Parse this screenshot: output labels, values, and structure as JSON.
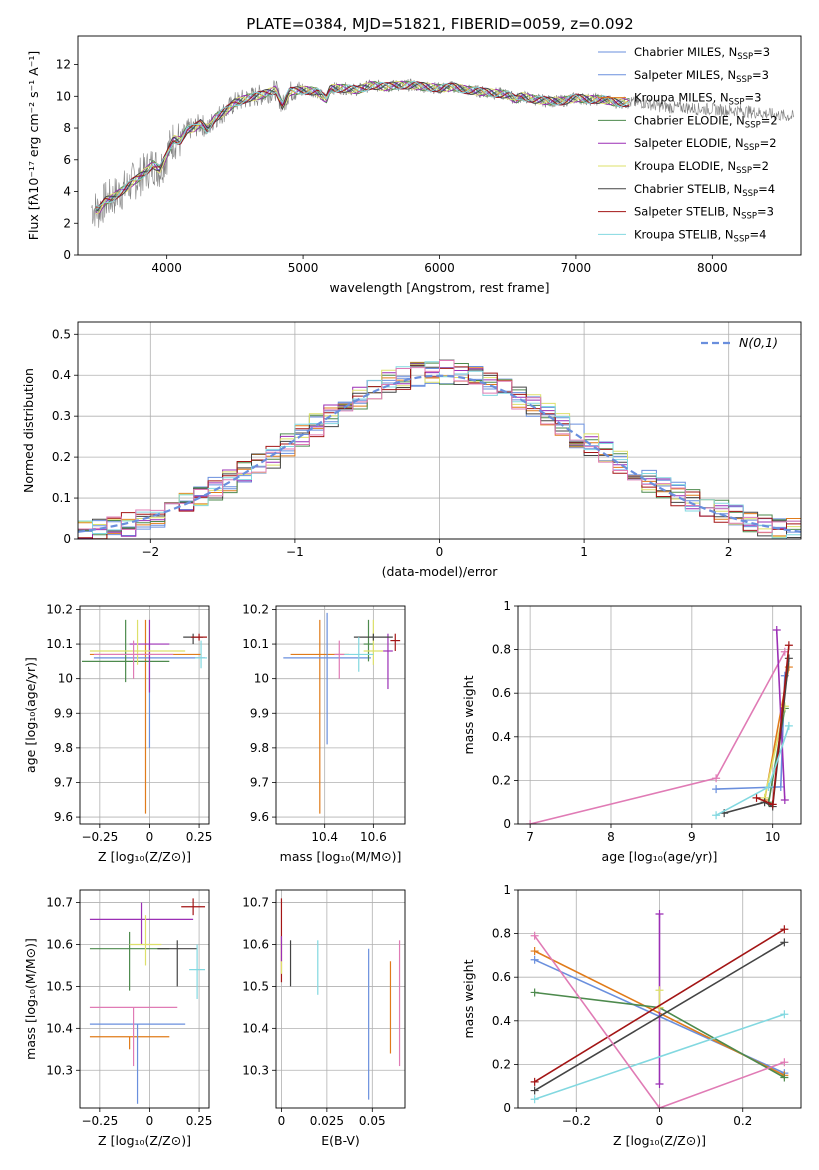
{
  "figure": {
    "title": "PLATE=0384, MJD=51821, FIBERID=0059, z=0.092"
  },
  "chart_data": [
    {
      "id": "spectrum",
      "type": "line",
      "xlabel": "wavelength [Angstrom, rest frame]",
      "ylabel": "Flux [fλ10⁻¹⁷ erg cm⁻² s⁻¹ A⁻¹]",
      "xlim": [
        3350,
        8650
      ],
      "ylim": [
        0,
        13.8
      ],
      "xticks": [
        4000,
        5000,
        6000,
        7000,
        8000
      ],
      "yticks": [
        0,
        2,
        4,
        6,
        8,
        10,
        12
      ],
      "grid": false,
      "legend_position": "right",
      "data_curve": {
        "color": "#808080",
        "points": [
          [
            3450,
            3.0
          ],
          [
            3500,
            2.8
          ],
          [
            3550,
            3.4
          ],
          [
            3600,
            3.6
          ],
          [
            3650,
            3.9
          ],
          [
            3700,
            4.2
          ],
          [
            3750,
            4.6
          ],
          [
            3800,
            4.9
          ],
          [
            3850,
            5.3
          ],
          [
            3900,
            5.7
          ],
          [
            3950,
            5.4
          ],
          [
            4000,
            6.3
          ],
          [
            4050,
            7.3
          ],
          [
            4100,
            7.2
          ],
          [
            4150,
            7.9
          ],
          [
            4200,
            8.0
          ],
          [
            4250,
            8.3
          ],
          [
            4300,
            7.9
          ],
          [
            4350,
            8.6
          ],
          [
            4400,
            8.9
          ],
          [
            4450,
            9.2
          ],
          [
            4500,
            9.6
          ],
          [
            4600,
            9.9
          ],
          [
            4700,
            10.1
          ],
          [
            4800,
            10.4
          ],
          [
            4850,
            9.4
          ],
          [
            4900,
            10.3
          ],
          [
            5000,
            10.4
          ],
          [
            5100,
            10.3
          ],
          [
            5170,
            9.8
          ],
          [
            5200,
            10.5
          ],
          [
            5300,
            10.5
          ],
          [
            5400,
            10.4
          ],
          [
            5500,
            10.7
          ],
          [
            5600,
            10.6
          ],
          [
            5700,
            10.7
          ],
          [
            5800,
            10.7
          ],
          [
            5900,
            10.6
          ],
          [
            6000,
            10.5
          ],
          [
            6100,
            10.6
          ],
          [
            6200,
            10.4
          ],
          [
            6300,
            10.3
          ],
          [
            6400,
            10.2
          ],
          [
            6500,
            10.1
          ],
          [
            6560,
            9.8
          ],
          [
            6600,
            10.0
          ],
          [
            6700,
            9.8
          ],
          [
            6800,
            9.7
          ],
          [
            6900,
            9.7
          ],
          [
            7000,
            9.9
          ],
          [
            7100,
            9.8
          ],
          [
            7200,
            9.8
          ],
          [
            7300,
            9.6
          ],
          [
            7400,
            9.6
          ],
          [
            7500,
            9.6
          ],
          [
            7600,
            9.4
          ],
          [
            7700,
            9.3
          ],
          [
            7800,
            9.3
          ],
          [
            7900,
            9.2
          ],
          [
            8000,
            9.2
          ],
          [
            8100,
            9.1
          ],
          [
            8200,
            9.1
          ],
          [
            8300,
            9.0
          ],
          [
            8400,
            8.9
          ],
          [
            8500,
            8.8
          ],
          [
            8600,
            8.7
          ]
        ]
      },
      "series": [
        {
          "name": "Chabrier MILES, N",
          "sub": "SSP",
          "suffix": "=3",
          "color": "#6a8fdd"
        },
        {
          "name": "Salpeter MILES, N",
          "sub": "SSP",
          "suffix": "=3",
          "color": "#6a8fdd"
        },
        {
          "name": "Kroupa MILES, N",
          "sub": "SSP",
          "suffix": "=3",
          "color": "#e07b1a"
        },
        {
          "name": "Chabrier ELODIE, N",
          "sub": "SSP",
          "suffix": "=2",
          "color": "#4d8a4d"
        },
        {
          "name": "Salpeter ELODIE, N",
          "sub": "SSP",
          "suffix": "=2",
          "color": "#9b2fb5"
        },
        {
          "name": "Kroupa ELODIE, N",
          "sub": "SSP",
          "suffix": "=2",
          "color": "#dde06a"
        },
        {
          "name": "Chabrier STELIB, N",
          "sub": "SSP",
          "suffix": "=4",
          "color": "#444444"
        },
        {
          "name": "Salpeter STELIB, N",
          "sub": "SSP",
          "suffix": "=3",
          "color": "#a31515"
        },
        {
          "name": "Kroupa STELIB, N",
          "sub": "SSP",
          "suffix": "=4",
          "color": "#82d8e0"
        }
      ]
    },
    {
      "id": "residual-histogram",
      "type": "histogram",
      "xlabel": "(data-model)/error",
      "ylabel": "Normed distribution",
      "xlim": [
        -2.5,
        2.5
      ],
      "ylim": [
        0,
        0.53
      ],
      "xticks": [
        -2,
        -1,
        0,
        1,
        2
      ],
      "yticks": [
        0.0,
        0.1,
        0.2,
        0.3,
        0.4,
        0.5
      ],
      "grid": true,
      "legend_position": "top-right",
      "bin_width": 0.1,
      "reference_curve": {
        "label": "N(0,1)",
        "color": "#6a8fdd",
        "dashed": true
      },
      "envelope": {
        "x": [
          -2.5,
          -2.2,
          -2.0,
          -1.8,
          -1.5,
          -1.2,
          -1.0,
          -0.8,
          -0.6,
          -0.4,
          -0.2,
          0.0,
          0.2,
          0.4,
          0.6,
          0.8,
          1.0,
          1.2,
          1.5,
          1.8,
          2.0,
          2.2,
          2.5
        ],
        "y": [
          0.02,
          0.03,
          0.05,
          0.08,
          0.13,
          0.19,
          0.24,
          0.29,
          0.33,
          0.38,
          0.4,
          0.41,
          0.4,
          0.37,
          0.34,
          0.29,
          0.24,
          0.2,
          0.13,
          0.09,
          0.06,
          0.04,
          0.02
        ]
      },
      "series_colors": [
        "#6a8fdd",
        "#6a8fdd",
        "#e07b1a",
        "#4d8a4d",
        "#9b2fb5",
        "#dde06a",
        "#444444",
        "#a31515",
        "#82d8e0",
        "#e07bb5"
      ]
    },
    {
      "id": "age-vs-Z",
      "type": "scatter",
      "xlabel": "Z [log₁₀(Z/Z⊙)]",
      "ylabel": "age  [log₁₀(age/yr)]",
      "xlim": [
        -0.35,
        0.3
      ],
      "ylim": [
        9.58,
        10.21
      ],
      "xticks": [
        -0.25,
        0.0,
        0.25
      ],
      "yticks": [
        9.6,
        9.7,
        9.8,
        9.9,
        10.0,
        10.1,
        10.2
      ],
      "grid": true,
      "points": [
        {
          "x": -0.02,
          "y": 10.07,
          "xerr": 0.28,
          "yerr_lo": 0.46,
          "yerr_hi": 0.1,
          "color": "#e07b1a"
        },
        {
          "x": 0.0,
          "y": 10.06,
          "xerr": 0.28,
          "yerr_lo": 0.26,
          "yerr_hi": 0.04,
          "color": "#6a8fdd"
        },
        {
          "x": -0.12,
          "y": 10.05,
          "xerr": 0.22,
          "yerr_lo": 0.06,
          "yerr_hi": 0.12,
          "color": "#4d8a4d"
        },
        {
          "x": 0.0,
          "y": 10.1,
          "xerr": 0.1,
          "yerr_lo": 0.14,
          "yerr_hi": 0.07,
          "color": "#9b2fb5"
        },
        {
          "x": -0.06,
          "y": 10.08,
          "xerr": 0.24,
          "yerr_lo": 0.04,
          "yerr_hi": 0.09,
          "color": "#dde06a"
        },
        {
          "x": 0.22,
          "y": 10.12,
          "xerr": 0.05,
          "yerr_lo": 0.02,
          "yerr_hi": 0.01,
          "color": "#444444"
        },
        {
          "x": 0.25,
          "y": 10.12,
          "xerr": 0.04,
          "yerr_lo": 0.01,
          "yerr_hi": 0.01,
          "color": "#a31515"
        },
        {
          "x": 0.26,
          "y": 10.06,
          "xerr": 0.03,
          "yerr_lo": 0.03,
          "yerr_hi": 0.05,
          "color": "#82d8e0"
        },
        {
          "x": -0.08,
          "y": 10.07,
          "xerr": 0.2,
          "yerr_lo": 0.07,
          "yerr_hi": 0.04,
          "color": "#e07bb5"
        }
      ]
    },
    {
      "id": "age-vs-mass",
      "type": "scatter",
      "xlabel": "mass [log₁₀(M/M⊙)]",
      "ylabel": "",
      "xlim": [
        10.2,
        10.73
      ],
      "ylim": [
        9.58,
        10.21
      ],
      "xticks": [
        10.4,
        10.6
      ],
      "yticks": [
        9.6,
        9.7,
        9.8,
        9.9,
        10.0,
        10.1,
        10.2
      ],
      "grid": true,
      "points": [
        {
          "x": 10.38,
          "y": 10.07,
          "xerr": 0.12,
          "yerr_lo": 0.46,
          "yerr_hi": 0.1,
          "color": "#e07b1a"
        },
        {
          "x": 10.41,
          "y": 10.06,
          "xerr": 0.18,
          "yerr_lo": 0.25,
          "yerr_hi": 0.13,
          "color": "#6a8fdd"
        },
        {
          "x": 10.58,
          "y": 10.1,
          "xerr": 0.02,
          "yerr_lo": 0.05,
          "yerr_hi": 0.07,
          "color": "#4d8a4d"
        },
        {
          "x": 10.66,
          "y": 10.08,
          "xerr": 0.02,
          "yerr_lo": 0.11,
          "yerr_hi": 0.05,
          "color": "#9b2fb5"
        },
        {
          "x": 10.6,
          "y": 10.08,
          "xerr": 0.04,
          "yerr_lo": 0.04,
          "yerr_hi": 0.09,
          "color": "#dde06a"
        },
        {
          "x": 10.6,
          "y": 10.12,
          "xerr": 0.08,
          "yerr_lo": 0.01,
          "yerr_hi": 0.01,
          "color": "#444444"
        },
        {
          "x": 10.69,
          "y": 10.11,
          "xerr": 0.02,
          "yerr_lo": 0.03,
          "yerr_hi": 0.02,
          "color": "#a31515"
        },
        {
          "x": 10.54,
          "y": 10.07,
          "xerr": 0.06,
          "yerr_lo": 0.05,
          "yerr_hi": 0.05,
          "color": "#82d8e0"
        },
        {
          "x": 10.46,
          "y": 10.07,
          "xerr": 0.02,
          "yerr_lo": 0.07,
          "yerr_hi": 0.04,
          "color": "#e07bb5"
        }
      ]
    },
    {
      "id": "weight-vs-age",
      "type": "line",
      "xlabel": "age  [log₁₀(age/yr)]",
      "ylabel": "mass weight",
      "xlim": [
        6.85,
        10.35
      ],
      "ylim": [
        0,
        1.0
      ],
      "xticks": [
        7,
        8,
        9,
        10
      ],
      "yticks": [
        0.0,
        0.2,
        0.4,
        0.6,
        0.8,
        1.0
      ],
      "grid": true,
      "series": [
        {
          "color": "#e07bb5",
          "x": [
            7.0,
            9.3,
            10.15
          ],
          "y": [
            0.0,
            0.21,
            0.79
          ]
        },
        {
          "color": "#6a8fdd",
          "x": [
            9.3,
            10.1,
            10.15
          ],
          "y": [
            0.16,
            0.17,
            0.68
          ]
        },
        {
          "color": "#e07b1a",
          "x": [
            9.9,
            10.2
          ],
          "y": [
            0.11,
            0.72
          ]
        },
        {
          "color": "#4d8a4d",
          "x": [
            9.95,
            10.15
          ],
          "y": [
            0.1,
            0.53
          ]
        },
        {
          "color": "#9b2fb5",
          "x": [
            10.05,
            10.15
          ],
          "y": [
            0.89,
            0.11
          ]
        },
        {
          "color": "#dde06a",
          "x": [
            9.9,
            10.15
          ],
          "y": [
            0.12,
            0.54
          ]
        },
        {
          "color": "#444444",
          "x": [
            9.4,
            9.9,
            10.0,
            10.2
          ],
          "y": [
            0.05,
            0.1,
            0.08,
            0.76
          ]
        },
        {
          "color": "#a31515",
          "x": [
            9.8,
            10.0,
            10.2
          ],
          "y": [
            0.12,
            0.09,
            0.82
          ]
        },
        {
          "color": "#82d8e0",
          "x": [
            9.3,
            9.95,
            10.2
          ],
          "y": [
            0.04,
            0.17,
            0.45
          ]
        }
      ]
    },
    {
      "id": "mass-vs-Z",
      "type": "scatter",
      "xlabel": "Z [log₁₀(Z/Z⊙)]",
      "ylabel": "mass [log₁₀(M/M⊙)]",
      "xlim": [
        -0.35,
        0.3
      ],
      "ylim": [
        10.21,
        10.73
      ],
      "xticks": [
        -0.25,
        0.0,
        0.25
      ],
      "yticks": [
        10.3,
        10.4,
        10.5,
        10.6,
        10.7
      ],
      "grid": true,
      "points": [
        {
          "x": -0.1,
          "y": 10.38,
          "xerr": 0.2,
          "yerr_lo": 0.03,
          "yerr_hi": 0.0,
          "color": "#e07b1a"
        },
        {
          "x": -0.06,
          "y": 10.41,
          "xerr": 0.24,
          "yerr_lo": 0.19,
          "yerr_hi": 0.0,
          "color": "#6a8fdd"
        },
        {
          "x": -0.1,
          "y": 10.59,
          "xerr": 0.2,
          "yerr_lo": 0.1,
          "yerr_hi": 0.04,
          "color": "#4d8a4d"
        },
        {
          "x": -0.04,
          "y": 10.66,
          "xerr": 0.26,
          "yerr_lo": 0.06,
          "yerr_hi": 0.04,
          "color": "#9b2fb5"
        },
        {
          "x": -0.02,
          "y": 10.6,
          "xerr": 0.08,
          "yerr_lo": 0.05,
          "yerr_hi": 0.07,
          "color": "#dde06a"
        },
        {
          "x": 0.14,
          "y": 10.59,
          "xerr": 0.1,
          "yerr_lo": 0.09,
          "yerr_hi": 0.02,
          "color": "#444444"
        },
        {
          "x": 0.22,
          "y": 10.69,
          "xerr": 0.06,
          "yerr_lo": 0.02,
          "yerr_hi": 0.02,
          "color": "#a31515"
        },
        {
          "x": 0.24,
          "y": 10.54,
          "xerr": 0.04,
          "yerr_lo": 0.07,
          "yerr_hi": 0.06,
          "color": "#82d8e0"
        },
        {
          "x": -0.08,
          "y": 10.45,
          "xerr": 0.22,
          "yerr_lo": 0.14,
          "yerr_hi": 0.0,
          "color": "#e07bb5"
        }
      ]
    },
    {
      "id": "mass-vs-ebv",
      "type": "scatter",
      "xlabel": "E(B-V)",
      "ylabel": "",
      "xlim": [
        -0.003,
        0.068
      ],
      "ylim": [
        10.21,
        10.73
      ],
      "xticks": [
        0.0,
        0.025,
        0.05
      ],
      "yticks": [
        10.3,
        10.4,
        10.5,
        10.6,
        10.7
      ],
      "grid": true,
      "points": [
        {
          "x": 0.0,
          "y": 10.6,
          "yerr_lo": 0.09,
          "yerr_hi": 0.11,
          "color": "#a31515"
        },
        {
          "x": 0.0,
          "y": 10.56,
          "yerr_lo": 0.03,
          "yerr_hi": 0.05,
          "color": "#dde06a"
        },
        {
          "x": 0.0,
          "y": 10.58,
          "yerr_lo": 0.02,
          "yerr_hi": 0.04,
          "color": "#9b2fb5"
        },
        {
          "x": 0.005,
          "y": 10.55,
          "yerr_lo": 0.05,
          "yerr_hi": 0.06,
          "color": "#444444"
        },
        {
          "x": 0.02,
          "y": 10.54,
          "yerr_lo": 0.06,
          "yerr_hi": 0.07,
          "color": "#82d8e0"
        },
        {
          "x": 0.048,
          "y": 10.41,
          "yerr_lo": 0.18,
          "yerr_hi": 0.18,
          "color": "#6a8fdd"
        },
        {
          "x": 0.06,
          "y": 10.45,
          "yerr_lo": 0.11,
          "yerr_hi": 0.11,
          "color": "#e07b1a"
        },
        {
          "x": 0.065,
          "y": 10.46,
          "yerr_lo": 0.15,
          "yerr_hi": 0.15,
          "color": "#e07bb5"
        }
      ]
    },
    {
      "id": "weight-vs-Z",
      "type": "line",
      "xlabel": "Z [log₁₀(Z/Z⊙)]",
      "ylabel": "mass weight",
      "xlim": [
        -0.34,
        0.34
      ],
      "ylim": [
        0,
        1.0
      ],
      "xticks": [
        -0.2,
        0.0,
        0.2
      ],
      "yticks": [
        0.0,
        0.2,
        0.4,
        0.6,
        0.8,
        1.0
      ],
      "grid": true,
      "series": [
        {
          "color": "#6a8fdd",
          "x": [
            -0.3,
            0.3
          ],
          "y": [
            0.68,
            0.16
          ]
        },
        {
          "color": "#e07b1a",
          "x": [
            -0.3,
            0.3
          ],
          "y": [
            0.72,
            0.15
          ]
        },
        {
          "color": "#4d8a4d",
          "x": [
            -0.3,
            0.0,
            0.3
          ],
          "y": [
            0.53,
            0.46,
            0.14
          ]
        },
        {
          "color": "#9b2fb5",
          "x": [
            0.0,
            0.0
          ],
          "y": [
            0.89,
            0.11
          ]
        },
        {
          "color": "#dde06a",
          "x": [
            0.0,
            0.0
          ],
          "y": [
            0.54,
            0.46
          ]
        },
        {
          "color": "#444444",
          "x": [
            -0.3,
            0.3
          ],
          "y": [
            0.08,
            0.76
          ]
        },
        {
          "color": "#a31515",
          "x": [
            -0.3,
            0.3
          ],
          "y": [
            0.12,
            0.82
          ]
        },
        {
          "color": "#82d8e0",
          "x": [
            -0.3,
            0.3
          ],
          "y": [
            0.04,
            0.43
          ]
        },
        {
          "color": "#e07bb5",
          "x": [
            -0.3,
            0.0,
            0.3
          ],
          "y": [
            0.79,
            0.0,
            0.21
          ]
        }
      ]
    }
  ]
}
